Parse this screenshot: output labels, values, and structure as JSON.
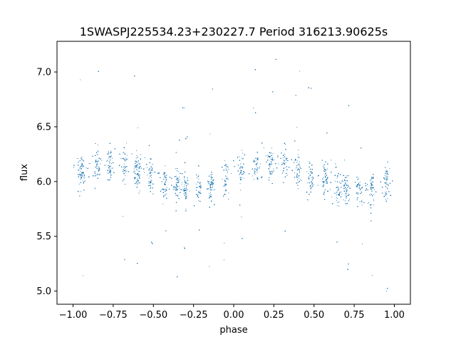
{
  "chart_data": {
    "type": "scatter",
    "title": "1SWASPJ225534.23+230227.7 Period 316213.90625s",
    "xlabel": "phase",
    "ylabel": "flux",
    "xlim": [
      -1.1,
      1.1
    ],
    "ylim": [
      4.88,
      7.28
    ],
    "xticks": [
      -1.0,
      -0.75,
      -0.5,
      -0.25,
      0.0,
      0.25,
      0.5,
      0.75,
      1.0
    ],
    "xtick_labels": [
      "−1.00",
      "−0.75",
      "−0.50",
      "−0.25",
      "0.00",
      "0.25",
      "0.50",
      "0.75",
      "1.00"
    ],
    "yticks": [
      5.0,
      5.5,
      6.0,
      6.5,
      7.0
    ],
    "ytick_labels": [
      "5.0",
      "5.5",
      "6.0",
      "6.5",
      "7.0"
    ],
    "grid": false,
    "marker_color": "#1f77b4",
    "series": [
      {
        "phase_range": [
          -1.0,
          1.0
        ],
        "mean_flux": 6.05,
        "amplitude": 0.12,
        "scatter": 0.14,
        "bright_phases": [
          -0.75,
          0.25
        ],
        "faint_phases": [
          -0.3,
          0.7
        ],
        "visit_clusters": [
          -0.95,
          -0.85,
          -0.77,
          -0.68,
          -0.6,
          -0.52,
          -0.43,
          -0.35,
          -0.3,
          -0.22,
          -0.14,
          -0.05,
          0.05,
          0.14,
          0.23,
          0.32,
          0.4,
          0.48,
          0.57,
          0.65,
          0.7,
          0.78,
          0.86,
          0.95
        ]
      }
    ]
  }
}
